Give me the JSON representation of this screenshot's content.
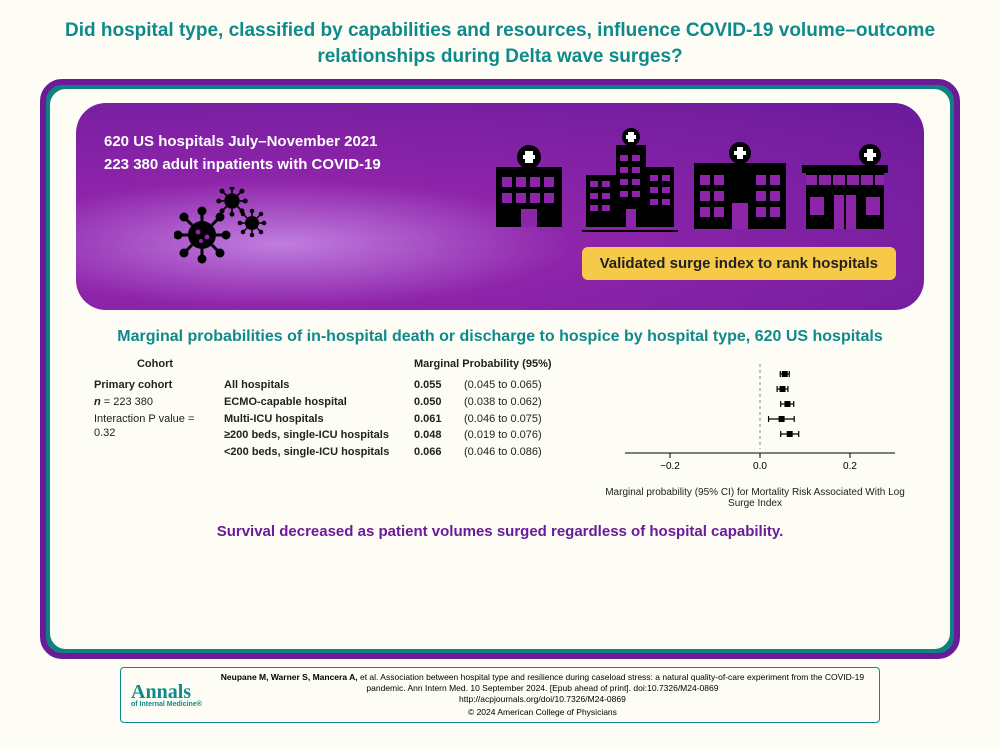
{
  "title": "Did hospital type, classified by capabilities and resources, influence COVID-19 volume–outcome relationships during Delta wave surges?",
  "hero": {
    "line1": "620 US hospitals July–November 2021",
    "line2": "223 380 adult inpatients with COVID-19",
    "badge": "Validated surge index to rank hospitals"
  },
  "section_heading": "Marginal probabilities of in-hospital death or discharge to hospice by hospital type, 620 US hospitals",
  "forest": {
    "cohort_header": "Cohort",
    "cohort_lines": [
      "Primary cohort",
      "n = 223 380",
      "Interaction P value = 0.32"
    ],
    "prob_header": "Marginal Probability (95%)",
    "rows": [
      {
        "label": "All hospitals",
        "pt": "0.055",
        "ci": "(0.045 to 0.065)",
        "lo": 0.045,
        "hi": 0.065,
        "mid": 0.055
      },
      {
        "label": "ECMO-capable hospital",
        "pt": "0.050",
        "ci": "(0.038 to 0.062)",
        "lo": 0.038,
        "hi": 0.062,
        "mid": 0.05
      },
      {
        "label": "Multi-ICU hospitals",
        "pt": "0.061",
        "ci": "(0.046 to 0.075)",
        "lo": 0.046,
        "hi": 0.075,
        "mid": 0.061
      },
      {
        "label": "≥200 beds, single-ICU hospitals",
        "pt": "0.048",
        "ci": "(0.019 to 0.076)",
        "lo": 0.019,
        "hi": 0.076,
        "mid": 0.048
      },
      {
        "label": "<200 beds, single-ICU hospitals",
        "pt": "0.066",
        "ci": "(0.046 to 0.086)",
        "lo": 0.046,
        "hi": 0.086,
        "mid": 0.066
      }
    ],
    "axis": {
      "min": -0.3,
      "max": 0.3,
      "ticks": [
        -0.2,
        0.0,
        0.2
      ]
    },
    "x_caption": "Marginal probability (95% CI) for Mortality Risk Associated With Log Surge Index"
  },
  "conclusion": "Survival decreased as patient volumes surged regardless of hospital capability.",
  "citation": {
    "logo_big": "Annals",
    "logo_small": "of Internal Medicine®",
    "text_bold": "Neupane M, Warner S, Mancera A,",
    "text_rest": " et al. Association between hospital type and resilience during caseload stress: a natural quality-of-care experiment from the COVID-19 pandemic. Ann Intern Med. 10 September 2024. [Epub ahead of print]. doi:10.7326/M24-0869",
    "url": "http://acpjournals.org/doi/10.7326/M24-0869",
    "copyright": "© 2024 American College of Physicians"
  },
  "colors": {
    "teal": "#0e8a8a",
    "purple_dark": "#6a1b9a",
    "purple_mid": "#8e24aa",
    "yellow": "#f7c948",
    "cream": "#fdfcf5",
    "black": "#000000"
  }
}
